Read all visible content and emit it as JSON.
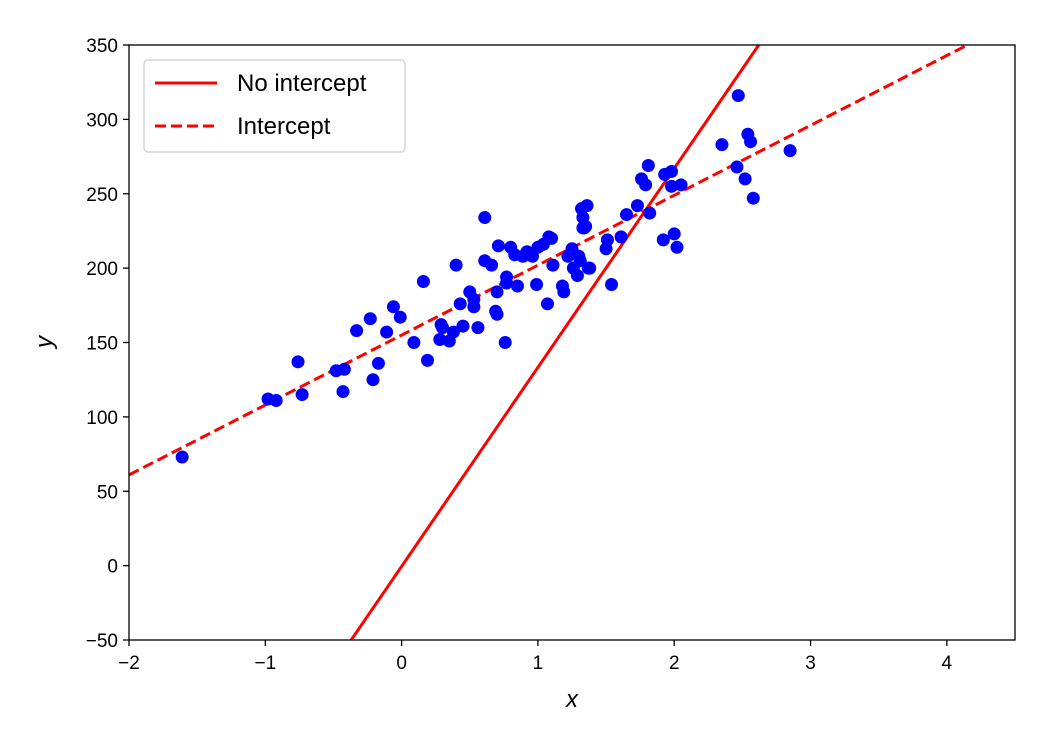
{
  "chart_data": {
    "type": "scatter",
    "title": "",
    "xlabel": "x",
    "ylabel": "y",
    "xlim": [
      -2,
      4.5
    ],
    "ylim": [
      -50,
      350
    ],
    "xticks": [
      -2,
      -1,
      0,
      1,
      2,
      3,
      4
    ],
    "yticks": [
      -50,
      0,
      50,
      100,
      150,
      200,
      250,
      300,
      350
    ],
    "xtick_labels": [
      "−2",
      "−1",
      "0",
      "1",
      "2",
      "3",
      "4"
    ],
    "ytick_labels": [
      "−50",
      "0",
      "50",
      "100",
      "150",
      "200",
      "250",
      "300",
      "350"
    ],
    "grid": false,
    "legend_position": "top-left",
    "points": {
      "color": "#0000ff",
      "x": [
        -1.61,
        -0.98,
        -0.92,
        -0.76,
        -0.73,
        -0.48,
        -0.43,
        -0.42,
        -0.33,
        -0.23,
        -0.21,
        -0.17,
        -0.11,
        -0.06,
        -0.01,
        0.09,
        0.16,
        0.19,
        0.28,
        0.29,
        0.3,
        0.35,
        0.38,
        0.4,
        0.43,
        0.45,
        0.5,
        0.53,
        0.53,
        0.56,
        0.61,
        0.61,
        0.66,
        0.69,
        0.7,
        0.7,
        0.71,
        0.76,
        0.77,
        0.77,
        0.8,
        0.83,
        0.85,
        0.89,
        0.92,
        0.96,
        0.99,
        1.0,
        1.04,
        1.07,
        1.08,
        1.1,
        1.11,
        1.18,
        1.19,
        1.22,
        1.25,
        1.26,
        1.29,
        1.3,
        1.31,
        1.32,
        1.33,
        1.33,
        1.34,
        1.35,
        1.36,
        1.37,
        1.38,
        1.5,
        1.51,
        1.54,
        1.61,
        1.65,
        1.73,
        1.76,
        1.79,
        1.81,
        1.82,
        1.92,
        1.93,
        1.98,
        1.98,
        2.0,
        2.02,
        2.05,
        2.35,
        2.46,
        2.47,
        2.52,
        2.54,
        2.56,
        2.58,
        2.85
      ],
      "y": [
        73,
        112,
        111,
        137,
        115,
        131,
        117,
        132,
        158,
        166,
        125,
        136,
        157,
        174,
        167,
        150,
        191,
        138,
        152,
        162,
        160,
        151,
        157,
        202,
        176,
        161,
        184,
        179,
        174,
        160,
        234,
        205,
        202,
        171,
        169,
        184,
        215,
        150,
        194,
        190,
        214,
        209,
        188,
        208,
        211,
        208,
        189,
        214,
        216,
        176,
        221,
        220,
        202,
        188,
        184,
        208,
        213,
        200,
        195,
        208,
        205,
        240,
        234,
        227,
        227,
        228,
        242,
        200,
        200,
        213,
        219,
        189,
        221,
        236,
        242,
        260,
        256,
        269,
        237,
        219,
        263,
        255,
        265,
        223,
        214,
        256,
        283,
        268,
        316,
        260,
        290,
        285,
        247,
        279
      ]
    },
    "series": [
      {
        "name": "No intercept",
        "color": "#ff0000",
        "style": "solid",
        "x": [
          -0.37,
          2.62
        ],
        "y": [
          -50,
          350
        ]
      },
      {
        "name": "Intercept",
        "color": "#ff0000",
        "style": "dashed",
        "x": [
          -2.0,
          4.15
        ],
        "y": [
          61,
          350
        ]
      }
    ]
  }
}
